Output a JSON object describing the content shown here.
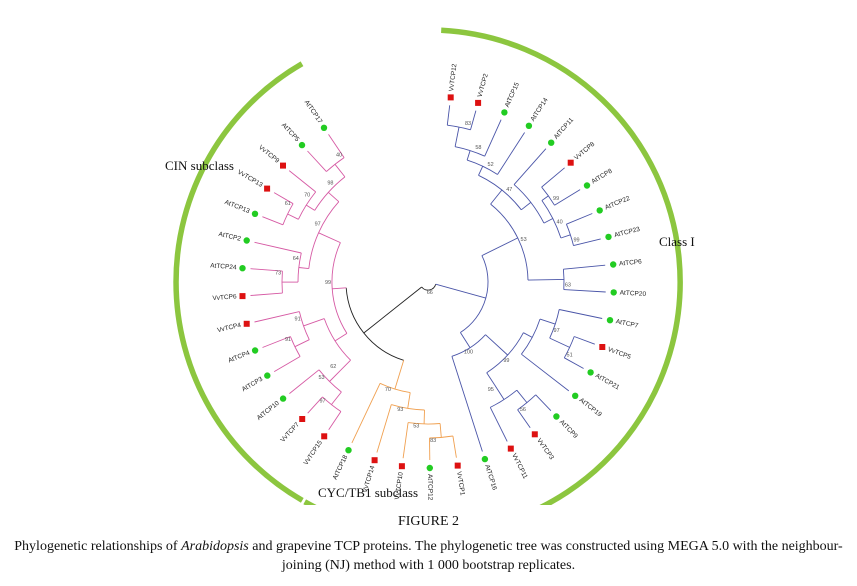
{
  "figure": {
    "colors": {
      "clade_arc": "#8cc63f",
      "class_i": "#4a55a8",
      "cin": "#d65aa4",
      "cyc_tb1": "#f0a050",
      "root": "#222222",
      "arabidopsis_marker": "#22cc22",
      "grape_marker": "#dd1111"
    },
    "root_bootstrap": "66",
    "clades": [
      {
        "id": "cin",
        "name": "CIN subclass",
        "branch_color": "#d65aa4"
      },
      {
        "id": "class_i",
        "name": "Class I",
        "branch_color": "#4a55a8"
      },
      {
        "id": "cyc",
        "name": "CYC/TB1 subclass",
        "branch_color": "#f0a050"
      }
    ],
    "leaves": [
      {
        "label": "VvTCP12",
        "species": "grapevine",
        "clade": "class_i"
      },
      {
        "label": "VvTCP2",
        "species": "grapevine",
        "clade": "class_i"
      },
      {
        "label": "AtTCP15",
        "species": "arabidopsis",
        "clade": "class_i"
      },
      {
        "label": "AtTCP14",
        "species": "arabidopsis",
        "clade": "class_i"
      },
      {
        "label": "AtTCP11",
        "species": "arabidopsis",
        "clade": "class_i"
      },
      {
        "label": "VvTCP8",
        "species": "grapevine",
        "clade": "class_i"
      },
      {
        "label": "AtTCP8",
        "species": "arabidopsis",
        "clade": "class_i"
      },
      {
        "label": "AtTCP22",
        "species": "arabidopsis",
        "clade": "class_i"
      },
      {
        "label": "AtTCP23",
        "species": "arabidopsis",
        "clade": "class_i"
      },
      {
        "label": "AtTCP6",
        "species": "arabidopsis",
        "clade": "class_i"
      },
      {
        "label": "AtTCP20",
        "species": "arabidopsis",
        "clade": "class_i"
      },
      {
        "label": "AtTCP7",
        "species": "arabidopsis",
        "clade": "class_i"
      },
      {
        "label": "VvTCP5",
        "species": "grapevine",
        "clade": "class_i"
      },
      {
        "label": "AtTCP21",
        "species": "arabidopsis",
        "clade": "class_i"
      },
      {
        "label": "AtTCP19",
        "species": "arabidopsis",
        "clade": "class_i"
      },
      {
        "label": "AtTCP9",
        "species": "arabidopsis",
        "clade": "class_i"
      },
      {
        "label": "VvTCP3",
        "species": "grapevine",
        "clade": "class_i"
      },
      {
        "label": "VvTCP11",
        "species": "grapevine",
        "clade": "class_i"
      },
      {
        "label": "AtTCP16",
        "species": "arabidopsis",
        "clade": "class_i"
      },
      {
        "label": "VvTCP1",
        "species": "grapevine",
        "clade": "cyc"
      },
      {
        "label": "AtTCP12",
        "species": "arabidopsis",
        "clade": "cyc"
      },
      {
        "label": "VvTCP10",
        "species": "grapevine",
        "clade": "cyc"
      },
      {
        "label": "VvTCP14",
        "species": "grapevine",
        "clade": "cyc"
      },
      {
        "label": "AtTCP18",
        "species": "arabidopsis",
        "clade": "cyc"
      },
      {
        "label": "VvTCP15",
        "species": "grapevine",
        "clade": "cin"
      },
      {
        "label": "VvTCP7",
        "species": "grapevine",
        "clade": "cin"
      },
      {
        "label": "AtTCP10",
        "species": "arabidopsis",
        "clade": "cin"
      },
      {
        "label": "AtTCP3",
        "species": "arabidopsis",
        "clade": "cin"
      },
      {
        "label": "AtTCP4",
        "species": "arabidopsis",
        "clade": "cin"
      },
      {
        "label": "VvTCP4",
        "species": "grapevine",
        "clade": "cin"
      },
      {
        "label": "VvTCP6",
        "species": "grapevine",
        "clade": "cin"
      },
      {
        "label": "AtTCP24",
        "species": "arabidopsis",
        "clade": "cin"
      },
      {
        "label": "AtTCP2",
        "species": "arabidopsis",
        "clade": "cin"
      },
      {
        "label": "AtTCP13",
        "species": "arabidopsis",
        "clade": "cin"
      },
      {
        "label": "VvTCP13",
        "species": "grapevine",
        "clade": "cin"
      },
      {
        "label": "VvTCP9",
        "species": "grapevine",
        "clade": "cin"
      },
      {
        "label": "AtTCP5",
        "species": "arabidopsis",
        "clade": "cin"
      },
      {
        "label": "AtTCP17",
        "species": "arabidopsis",
        "clade": "cin"
      }
    ]
  },
  "caption": {
    "heading": "FIGURE 2",
    "body_before": "Phylogenetic relationships of ",
    "body_italic": "Arabidopsis",
    "body_after": " and grapevine TCP proteins. The phylogenetic tree was constructed using MEGA 5.0 with the neighbour-joining (NJ) method with 1 000 bootstrap replicates."
  }
}
